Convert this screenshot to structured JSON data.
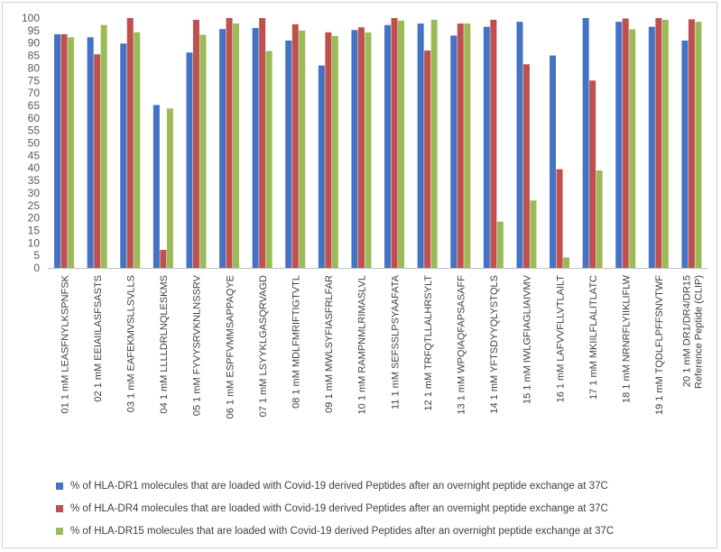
{
  "chart_data": {
    "type": "bar",
    "title": "",
    "xlabel": "",
    "ylabel": "",
    "ylim": [
      0,
      100
    ],
    "y_ticks": [
      0,
      5,
      10,
      15,
      20,
      25,
      30,
      35,
      40,
      45,
      50,
      55,
      60,
      65,
      70,
      75,
      80,
      85,
      90,
      95,
      100
    ],
    "grid": false,
    "legend_position": "bottom",
    "categories": [
      "01 1 mM LEASFNYLKSPNFSK",
      "02 1 mM EEIAIILASFSASTS",
      "03 1 mM EAFEKMVSLLSVLLS",
      "04 1 mM LLLLDRLNQLESKMS",
      "05 1 mM FYVYSRVKNLNSSRV",
      "06 1 mM ESPFVMMSAPPAQYE",
      "07 1 mM LSYYKLGASQRVAGD",
      "08 1 mM MDLFMRIFTIGTVTL",
      "09 1 mM MWLSYFIASFRLFAR",
      "10 1 mM RAMPNMLRIMASLVL",
      "11 1 mM SEFSSLPSYAAFATA",
      "12 1 mM TRFQTLLALHRSYLT",
      "13 1 mM WPQIAQFAPSASAFF",
      "14 1 mM YFTSDYYQLYSTQLS",
      "15 1 mM IWLGFIAGLIAIVMV",
      "16 1 mM LAFVVFLLVTLAILT",
      "17 1 mM MKIILFLALITLATC",
      "18 1 mM NRNRFLYIIKLIFLW",
      "19 1 mM TQDLFLPFFSNVTWF",
      "20 1 mM DR1/DR4/DR15 Reference Peptide (CLIP)"
    ],
    "series": [
      {
        "name": "% of HLA-DR1 molecules that are loaded with Covid-19 derived Peptides after an overnight peptide exchange at 37C",
        "color": "#4472C4",
        "values": [
          93.5,
          92.3,
          89.8,
          65.2,
          86.2,
          95.6,
          96.0,
          91.0,
          81.0,
          95.2,
          97.2,
          97.8,
          93.0,
          96.5,
          98.5,
          85.0,
          100.0,
          98.5,
          96.5,
          91.0
        ]
      },
      {
        "name": "% of HLA-DR4 molecules that are loaded with Covid-19 derived Peptides after an overnight peptide exchange at 37C",
        "color": "#C0504D",
        "values": [
          93.5,
          85.5,
          100.0,
          7.2,
          99.3,
          100.0,
          100.0,
          97.5,
          94.3,
          96.3,
          100.0,
          87.0,
          97.8,
          99.3,
          81.5,
          39.5,
          75.0,
          99.8,
          100.0,
          99.5
        ]
      },
      {
        "name": "% of HLA-DR15 molecules that are loaded with Covid-19 derived Peptides after an overnight peptide exchange at 37C",
        "color": "#9BBB59",
        "values": [
          92.3,
          97.2,
          94.3,
          63.8,
          93.3,
          97.8,
          86.8,
          95.0,
          92.8,
          94.2,
          99.0,
          99.3,
          97.8,
          18.5,
          27.0,
          4.2,
          39.0,
          95.5,
          99.3,
          98.5
        ]
      }
    ]
  }
}
